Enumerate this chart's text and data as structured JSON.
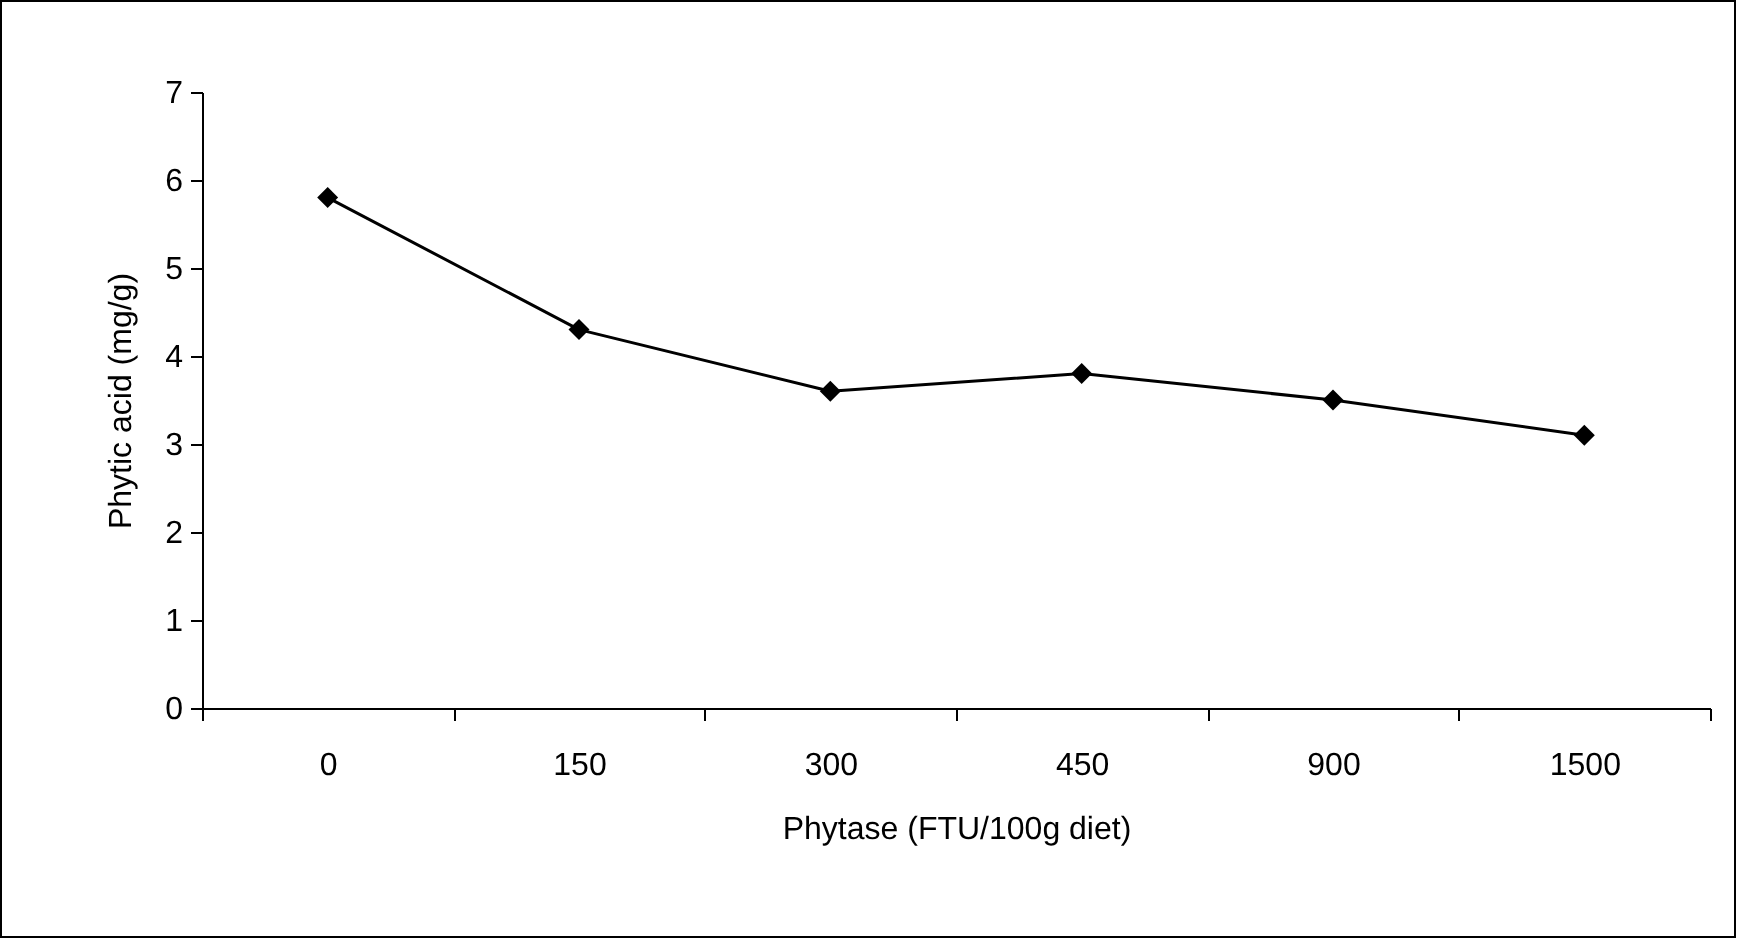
{
  "chart_data": {
    "type": "line",
    "xlabel": "Phytase (FTU/100g diet)",
    "ylabel": "Phytic acid (mg/g)",
    "categories": [
      "0",
      "150",
      "300",
      "450",
      "900",
      "1500"
    ],
    "series": [
      {
        "color": "#000000",
        "values": [
          5.8,
          4.3,
          3.6,
          3.8,
          3.5,
          3.1
        ]
      }
    ],
    "ylim": [
      0,
      7
    ],
    "yticks": [
      0,
      1,
      2,
      3,
      4,
      5,
      6,
      7
    ],
    "grid": false,
    "legend": false,
    "marker": "diamond",
    "line_style": "solid"
  }
}
